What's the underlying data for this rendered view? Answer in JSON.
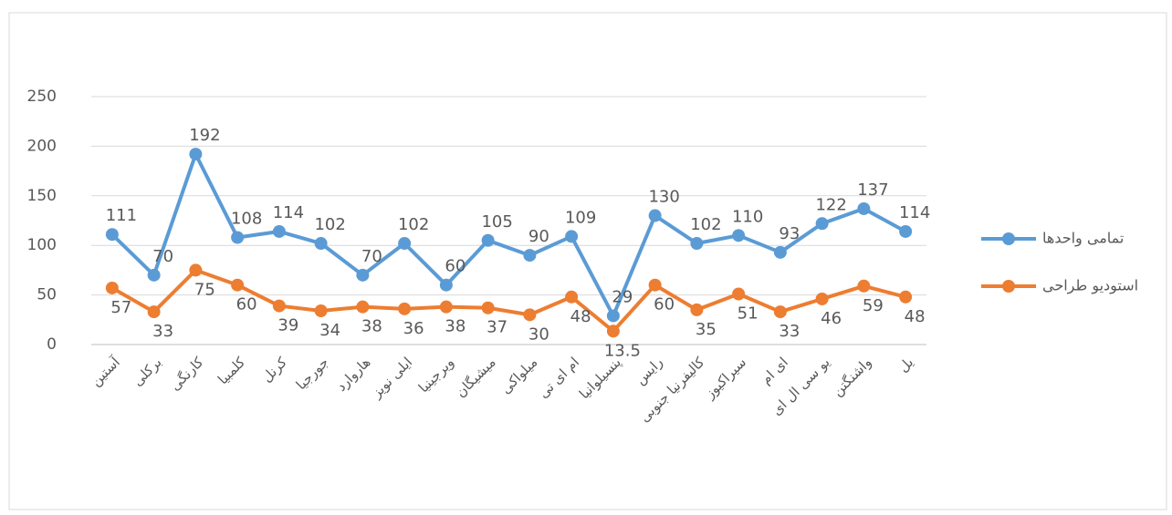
{
  "chart_data": {
    "type": "line",
    "categories": [
      "آستین",
      "برکلی",
      "کارنگی",
      "کلمبیا",
      "کرنل",
      "جورجیا",
      "هاروارد",
      "ایلی نویز",
      "ویرجینیا",
      "میشیگان",
      "میلواکی",
      "ام ای تی",
      "پنسیلوانیا",
      "رایس",
      "کالیفرنیا جنوبی",
      "سیراکیوز",
      "ای ام",
      "یو سی ال ای",
      "واشنگتن",
      "یل"
    ],
    "series": [
      {
        "name": "تمامی واحدها",
        "color": "#5b9bd5",
        "values": [
          111,
          70,
          192,
          108,
          114,
          102,
          70,
          102,
          60,
          105,
          90,
          109,
          29,
          130,
          102,
          110,
          93,
          122,
          137,
          114
        ]
      },
      {
        "name": "استودیو طراحی",
        "color": "#ed7d31",
        "values": [
          57,
          33,
          75,
          60,
          39,
          34,
          38,
          36,
          38,
          37,
          30,
          48,
          13.5,
          60,
          35,
          51,
          33,
          46,
          59,
          48
        ]
      }
    ],
    "ylim": [
      0,
      250
    ],
    "yticks": [
      0,
      50,
      100,
      150,
      200,
      250
    ],
    "grid": true,
    "legend": "right"
  }
}
